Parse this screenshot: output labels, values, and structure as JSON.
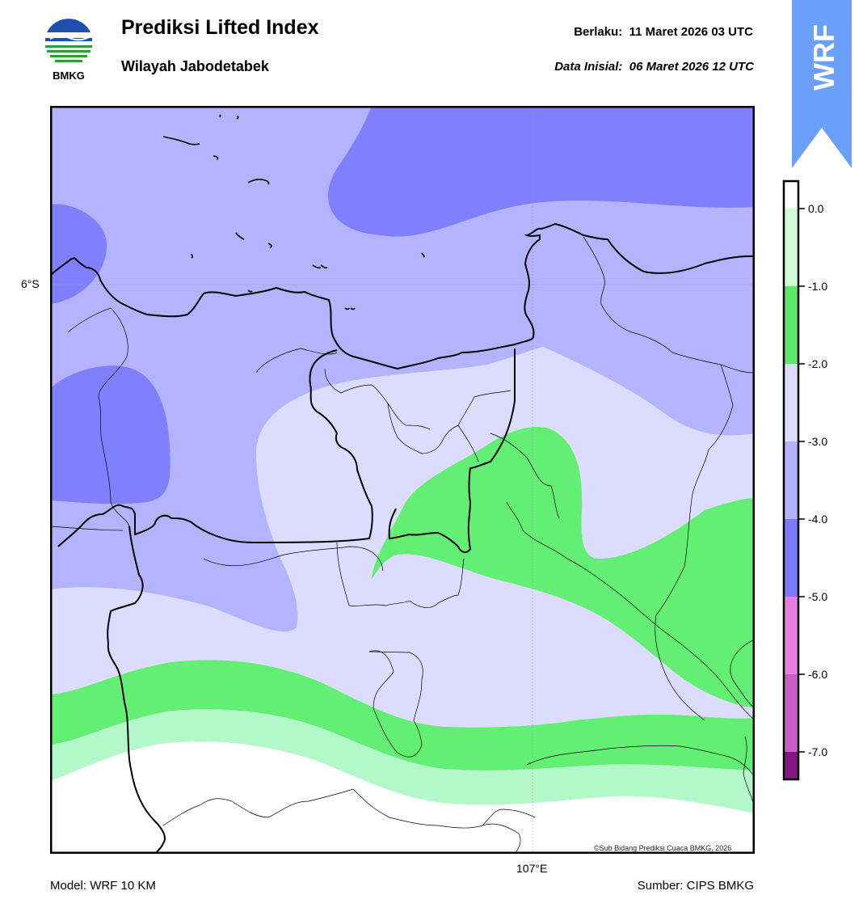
{
  "header": {
    "logo_text": "BMKG",
    "title": "Prediksi Lifted Index",
    "subtitle": "Wilayah Jabodetabek",
    "valid_time": "Berlaku:  11 Maret 2026 03 UTC",
    "init_time": "Data Inisial:  06 Maret 2026 12 UTC",
    "badge": "WRF"
  },
  "map": {
    "lat_label": "6°S",
    "lon_label": "107°E",
    "credit": "©Sub Bidang Prediksi Cuaca BMKG, 2026",
    "colors": {
      "below_-4": "#8080ff",
      "-4_to_-3": "#b3b3ff",
      "-3_to_-2": "#dcdcff",
      "-2_to_-1": "#63ee74",
      "-1_to_0": "#b3f8c8",
      "above_0": "#ffffff"
    }
  },
  "colorbar": {
    "ticks": [
      "0.0",
      "-1.0",
      "-2.0",
      "-3.0",
      "-4.0",
      "-5.0",
      "-6.0",
      "-7.0"
    ],
    "colors": [
      "#ffffff",
      "#ccfcd8",
      "#5be86a",
      "#dcdcff",
      "#b3b3ff",
      "#7b7bff",
      "#e87ee0",
      "#c660c4",
      "#a33da3",
      "#801a80"
    ]
  },
  "footer": {
    "model": "Model: WRF 10 KM",
    "source": "Sumber: CIPS BMKG"
  }
}
